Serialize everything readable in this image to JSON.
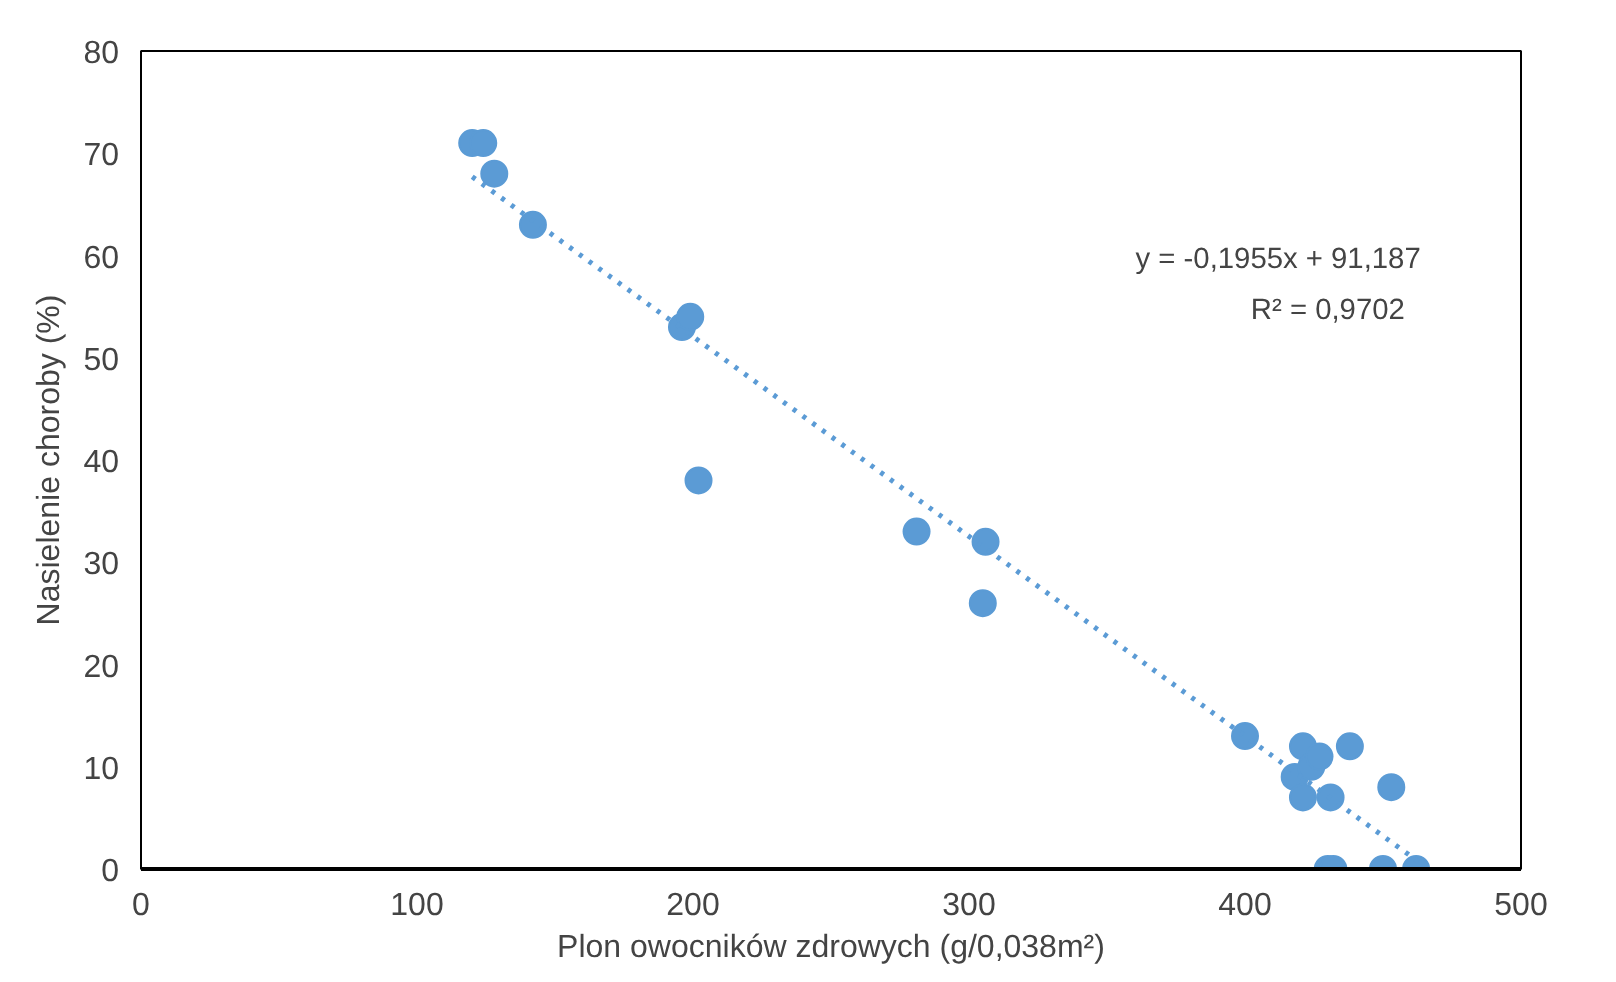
{
  "chart_data": {
    "type": "scatter",
    "xlabel": "Plon owocników zdrowych (g/0,038m²)",
    "ylabel": "Nasielenie choroby (%)",
    "xlim": [
      0,
      500
    ],
    "ylim": [
      0,
      80
    ],
    "xticks": [
      0,
      100,
      200,
      300,
      400,
      500
    ],
    "yticks": [
      0,
      10,
      20,
      30,
      40,
      50,
      60,
      70,
      80
    ],
    "grid": false,
    "annotations": [
      "y = -0,1955x + 91,187",
      "R² = 0,9702"
    ],
    "series": [
      {
        "marker": "circle",
        "color": "#5b9bd5",
        "x": [
          120,
          124,
          128,
          142,
          196,
          199,
          202,
          281,
          306,
          305,
          400,
          418,
          421,
          421,
          424,
          427,
          438,
          431,
          453,
          430,
          432,
          450,
          462
        ],
        "values": [
          71,
          71,
          68,
          63,
          53,
          54,
          38,
          33,
          32,
          26,
          13,
          9,
          12,
          7,
          10,
          11,
          12,
          7,
          8,
          0,
          0,
          0,
          0
        ]
      },
      {
        "type": "line",
        "line_style": "dotted",
        "color": "#5b9bd5",
        "x": [
          120,
          466
        ],
        "values": [
          67.7,
          0.1
        ]
      }
    ]
  }
}
